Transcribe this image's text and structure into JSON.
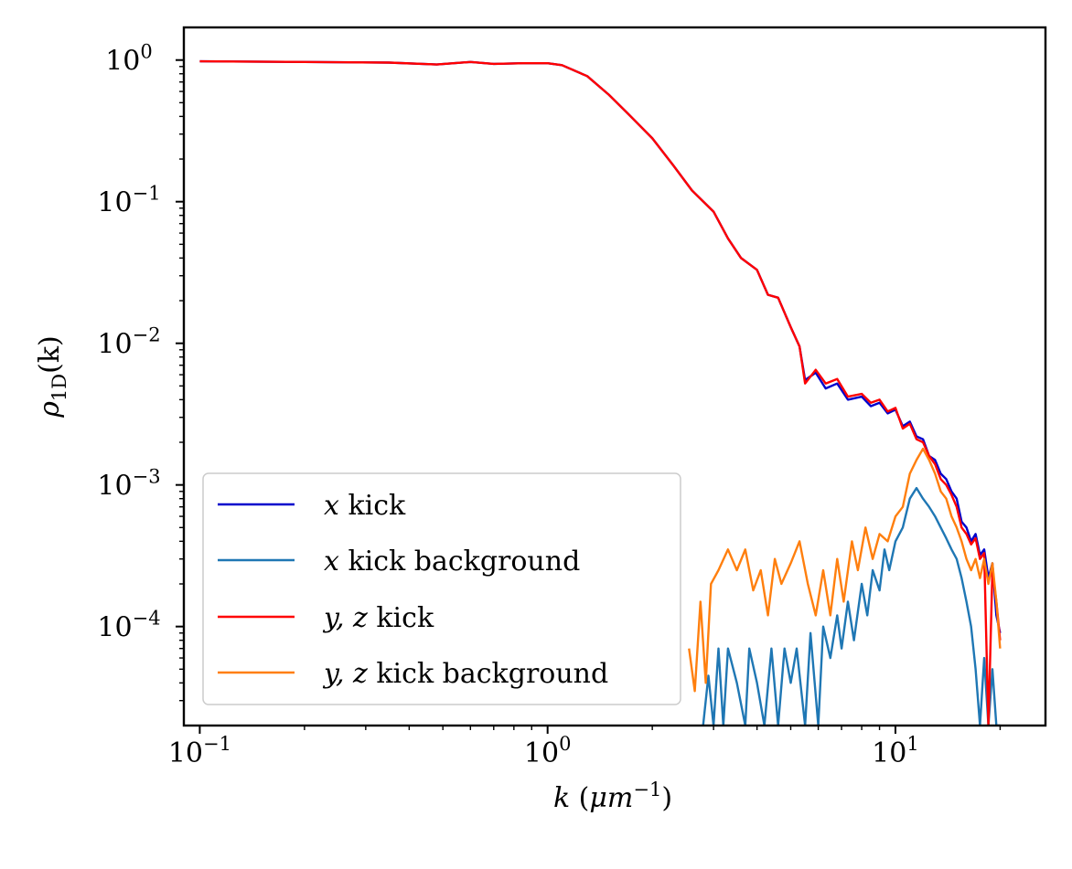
{
  "chart_data": {
    "type": "line",
    "x_scale": "log",
    "y_scale": "log",
    "xlim": [
      0.09,
      27
    ],
    "ylim": [
      2e-05,
      1.7
    ],
    "xlabel": "k (μm⁻¹)",
    "ylabel": "ρ1D(k)",
    "xlabel_parts": {
      "var": "k",
      "open": " (",
      "unit": "μm",
      "exp": "−1",
      "close": ")"
    },
    "ylabel_parts": {
      "var": "ρ",
      "sub": "1D",
      "arg": "(k)"
    },
    "x_ticks": [
      {
        "value": 0.1,
        "base": "10",
        "exp": "−1"
      },
      {
        "value": 1,
        "base": "10",
        "exp": "0"
      },
      {
        "value": 10,
        "base": "10",
        "exp": "1"
      }
    ],
    "y_ticks": [
      {
        "value": 1,
        "base": "10",
        "exp": "0"
      },
      {
        "value": 0.1,
        "base": "10",
        "exp": "−1"
      },
      {
        "value": 0.01,
        "base": "10",
        "exp": "−2"
      },
      {
        "value": 0.001,
        "base": "10",
        "exp": "−3"
      },
      {
        "value": 0.0001,
        "base": "10",
        "exp": "−4"
      }
    ],
    "grid": false,
    "legend_position": "bottom-left",
    "series": [
      {
        "name": "x kick",
        "legend_var": "x",
        "legend_rest": " kick",
        "color": "#0000cc",
        "points": [
          [
            0.1,
            0.98
          ],
          [
            0.2,
            0.97
          ],
          [
            0.35,
            0.96
          ],
          [
            0.48,
            0.93
          ],
          [
            0.6,
            0.97
          ],
          [
            0.7,
            0.94
          ],
          [
            0.85,
            0.95
          ],
          [
            1.0,
            0.95
          ],
          [
            1.1,
            0.92
          ],
          [
            1.3,
            0.77
          ],
          [
            1.5,
            0.57
          ],
          [
            1.7,
            0.42
          ],
          [
            2.0,
            0.28
          ],
          [
            2.3,
            0.18
          ],
          [
            2.6,
            0.12
          ],
          [
            3.0,
            0.085
          ],
          [
            3.3,
            0.055
          ],
          [
            3.6,
            0.04
          ],
          [
            4.0,
            0.033
          ],
          [
            4.3,
            0.022
          ],
          [
            4.6,
            0.021
          ],
          [
            5.0,
            0.013
          ],
          [
            5.3,
            0.0095
          ],
          [
            5.5,
            0.0055
          ],
          [
            5.9,
            0.0062
          ],
          [
            6.3,
            0.0048
          ],
          [
            6.8,
            0.0052
          ],
          [
            7.3,
            0.004
          ],
          [
            8.0,
            0.0042
          ],
          [
            8.5,
            0.0036
          ],
          [
            9.0,
            0.0038
          ],
          [
            9.5,
            0.0032
          ],
          [
            10.0,
            0.0034
          ],
          [
            10.5,
            0.0026
          ],
          [
            11.0,
            0.0028
          ],
          [
            11.5,
            0.0022
          ],
          [
            12.0,
            0.0021
          ],
          [
            12.5,
            0.0016
          ],
          [
            13.0,
            0.0015
          ],
          [
            13.5,
            0.0012
          ],
          [
            14.0,
            0.0011
          ],
          [
            14.5,
            0.0009
          ],
          [
            15.0,
            0.0008
          ],
          [
            15.5,
            0.00055
          ],
          [
            16.0,
            0.0005
          ],
          [
            16.5,
            0.0004
          ],
          [
            17.0,
            0.00045
          ],
          [
            17.5,
            0.00032
          ],
          [
            18.0,
            0.00035
          ],
          [
            18.5,
            0.00022
          ],
          [
            19.0,
            0.00028
          ],
          [
            19.5,
            0.00012
          ],
          [
            20.0,
            9e-05
          ]
        ]
      },
      {
        "name": "x kick background",
        "legend_var": "x",
        "legend_rest": " kick background",
        "color": "#1f77b4",
        "points": [
          [
            2.8,
            2e-05
          ],
          [
            2.9,
            4.5e-05
          ],
          [
            3.0,
            2e-05
          ],
          [
            3.1,
            7e-05
          ],
          [
            3.2,
            2e-05
          ],
          [
            3.3,
            7e-05
          ],
          [
            3.5,
            4e-05
          ],
          [
            3.7,
            2e-05
          ],
          [
            3.8,
            7e-05
          ],
          [
            4.0,
            4e-05
          ],
          [
            4.2,
            2e-05
          ],
          [
            4.4,
            7e-05
          ],
          [
            4.6,
            2e-05
          ],
          [
            4.8,
            7e-05
          ],
          [
            5.0,
            4e-05
          ],
          [
            5.2,
            7e-05
          ],
          [
            5.5,
            2e-05
          ],
          [
            5.7,
            9e-05
          ],
          [
            6.0,
            2e-05
          ],
          [
            6.2,
            0.0001
          ],
          [
            6.5,
            6e-05
          ],
          [
            6.8,
            0.00012
          ],
          [
            7.0,
            7e-05
          ],
          [
            7.3,
            0.00015
          ],
          [
            7.6,
            8e-05
          ],
          [
            8.0,
            0.0002
          ],
          [
            8.3,
            0.00012
          ],
          [
            8.6,
            0.00025
          ],
          [
            9.0,
            0.00018
          ],
          [
            9.3,
            0.00035
          ],
          [
            9.6,
            0.00025
          ],
          [
            10.0,
            0.0004
          ],
          [
            10.5,
            0.0005
          ],
          [
            11.0,
            0.0008
          ],
          [
            11.5,
            0.00095
          ],
          [
            12.0,
            0.0008
          ],
          [
            12.5,
            0.0007
          ],
          [
            13.0,
            0.0006
          ],
          [
            13.5,
            0.0005
          ],
          [
            14.0,
            0.00042
          ],
          [
            14.5,
            0.00035
          ],
          [
            15.0,
            0.0003
          ],
          [
            15.5,
            0.00022
          ],
          [
            16.0,
            0.00015
          ],
          [
            16.5,
            0.0001
          ],
          [
            17.0,
            5e-05
          ],
          [
            17.5,
            2e-05
          ],
          [
            18.0,
            6e-05
          ],
          [
            18.5,
            2e-05
          ],
          [
            19.0,
            5e-05
          ],
          [
            19.5,
            2e-05
          ],
          [
            20.0,
            2e-05
          ]
        ]
      },
      {
        "name": "y, z kick",
        "legend_var": "y, z",
        "legend_rest": " kick",
        "color": "#ff0000",
        "points": [
          [
            0.1,
            0.98
          ],
          [
            0.2,
            0.97
          ],
          [
            0.35,
            0.96
          ],
          [
            0.48,
            0.93
          ],
          [
            0.6,
            0.97
          ],
          [
            0.7,
            0.94
          ],
          [
            0.85,
            0.95
          ],
          [
            1.0,
            0.95
          ],
          [
            1.1,
            0.92
          ],
          [
            1.3,
            0.77
          ],
          [
            1.5,
            0.57
          ],
          [
            1.7,
            0.42
          ],
          [
            2.0,
            0.28
          ],
          [
            2.3,
            0.18
          ],
          [
            2.6,
            0.12
          ],
          [
            3.0,
            0.085
          ],
          [
            3.3,
            0.055
          ],
          [
            3.6,
            0.04
          ],
          [
            4.0,
            0.033
          ],
          [
            4.3,
            0.022
          ],
          [
            4.6,
            0.021
          ],
          [
            5.0,
            0.013
          ],
          [
            5.3,
            0.0095
          ],
          [
            5.5,
            0.0052
          ],
          [
            5.9,
            0.0065
          ],
          [
            6.3,
            0.0052
          ],
          [
            6.8,
            0.0056
          ],
          [
            7.3,
            0.0042
          ],
          [
            8.0,
            0.0044
          ],
          [
            8.5,
            0.0038
          ],
          [
            9.0,
            0.004
          ],
          [
            9.5,
            0.0033
          ],
          [
            10.0,
            0.0035
          ],
          [
            10.5,
            0.0025
          ],
          [
            11.0,
            0.0027
          ],
          [
            11.5,
            0.0021
          ],
          [
            12.0,
            0.002
          ],
          [
            12.5,
            0.0016
          ],
          [
            13.0,
            0.0014
          ],
          [
            13.5,
            0.0011
          ],
          [
            14.0,
            0.001
          ],
          [
            14.5,
            0.00085
          ],
          [
            15.0,
            0.0007
          ],
          [
            15.5,
            0.0005
          ],
          [
            16.0,
            0.00045
          ],
          [
            16.5,
            0.00038
          ],
          [
            17.0,
            0.00042
          ],
          [
            17.5,
            0.0003
          ],
          [
            18.0,
            0.00033
          ],
          [
            18.5,
            2e-05
          ],
          [
            19.0,
            0.00025
          ],
          [
            19.5,
            0.00015
          ],
          [
            20.0,
            8e-05
          ]
        ]
      },
      {
        "name": "y, z kick background",
        "legend_var": "y, z",
        "legend_rest": " kick background",
        "color": "#ff7f0e",
        "points": [
          [
            2.55,
            7e-05
          ],
          [
            2.65,
            3.5e-05
          ],
          [
            2.75,
            0.00015
          ],
          [
            2.85,
            4e-05
          ],
          [
            2.95,
            0.0002
          ],
          [
            3.1,
            0.00025
          ],
          [
            3.3,
            0.00035
          ],
          [
            3.5,
            0.00025
          ],
          [
            3.7,
            0.00035
          ],
          [
            3.9,
            0.00018
          ],
          [
            4.1,
            0.00025
          ],
          [
            4.3,
            0.00012
          ],
          [
            4.5,
            0.0003
          ],
          [
            4.7,
            0.0002
          ],
          [
            5.0,
            0.00028
          ],
          [
            5.3,
            0.0004
          ],
          [
            5.6,
            0.0002
          ],
          [
            5.9,
            0.00012
          ],
          [
            6.2,
            0.00025
          ],
          [
            6.5,
            0.00012
          ],
          [
            6.8,
            0.0003
          ],
          [
            7.1,
            0.00015
          ],
          [
            7.5,
            0.0004
          ],
          [
            7.8,
            0.00025
          ],
          [
            8.2,
            0.0005
          ],
          [
            8.6,
            0.0003
          ],
          [
            9.0,
            0.00045
          ],
          [
            9.5,
            0.0004
          ],
          [
            10.0,
            0.0006
          ],
          [
            10.5,
            0.0007
          ],
          [
            11.0,
            0.0012
          ],
          [
            11.5,
            0.0015
          ],
          [
            12.0,
            0.0018
          ],
          [
            12.5,
            0.0015
          ],
          [
            13.0,
            0.0012
          ],
          [
            13.5,
            0.0009
          ],
          [
            14.0,
            0.0008
          ],
          [
            14.5,
            0.0006
          ],
          [
            15.0,
            0.0005
          ],
          [
            15.5,
            0.0004
          ],
          [
            16.0,
            0.0003
          ],
          [
            16.5,
            0.00025
          ],
          [
            17.0,
            0.0003
          ],
          [
            17.5,
            0.00022
          ],
          [
            18.0,
            0.0003
          ],
          [
            18.5,
            0.0002
          ],
          [
            19.0,
            0.00028
          ],
          [
            19.5,
            0.00015
          ],
          [
            20.0,
            7e-05
          ]
        ]
      }
    ]
  }
}
